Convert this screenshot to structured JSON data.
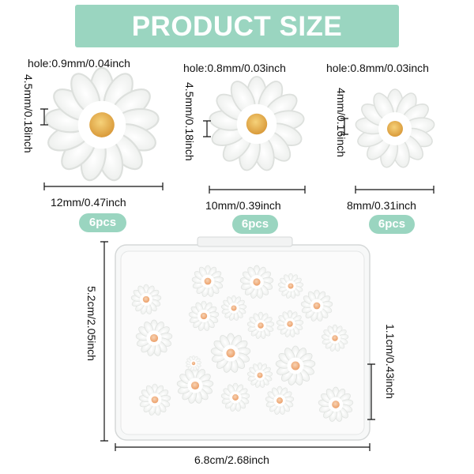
{
  "title": "PRODUCT SIZE",
  "colors": {
    "banner": "#9ad5c0",
    "pill": "#9ad5c0",
    "petal": "#ffffff",
    "center_large": "#e6b15a",
    "center_small": "#f0b98f"
  },
  "items": [
    {
      "hole": "hole:0.9mm/0.04inch",
      "thickness": "4.5mm/0.18inch",
      "diameter": "12mm/0.47inch",
      "quantity": "6pcs"
    },
    {
      "hole": "hole:0.8mm/0.03inch",
      "thickness": "4.5mm/0.18inch",
      "diameter": "10mm/0.39inch",
      "quantity": "6pcs"
    },
    {
      "hole": "hole:0.8mm/0.03inch",
      "thickness": "4mm/0.16inch",
      "diameter": "8mm/0.31inch",
      "quantity": "6pcs"
    }
  ],
  "box": {
    "height": "5.2cm/2.05inch",
    "depth": "1.1cm/0.43inch",
    "width": "6.8cm/2.68inch"
  }
}
